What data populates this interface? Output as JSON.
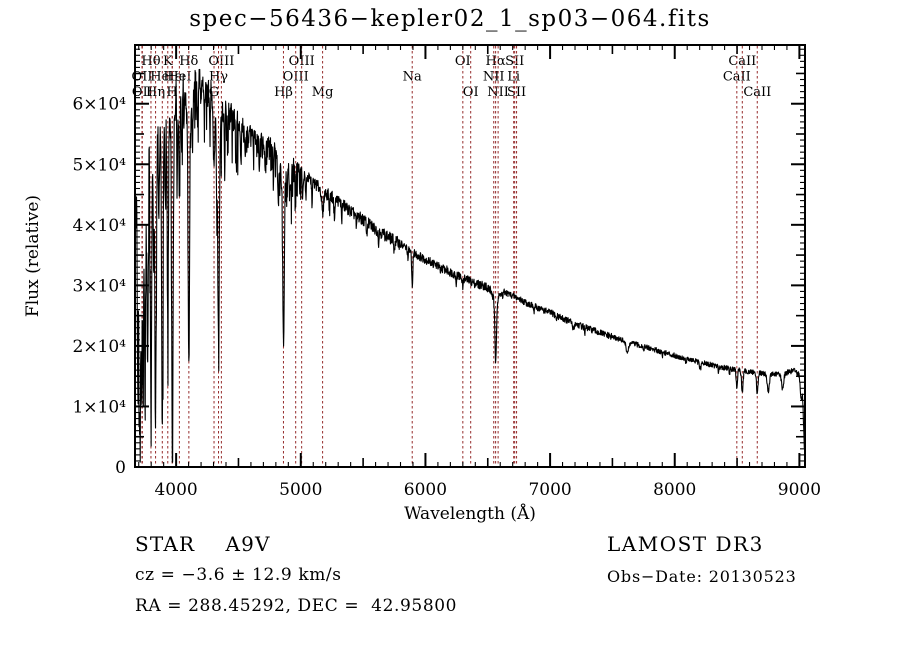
{
  "header": {
    "title": "spec−56436−kepler02_1_sp03−064.fits"
  },
  "footer": {
    "class_label": "STAR    A9V",
    "cz": "cz = −3.6 ± 12.9 km/s",
    "radec": "RA = 288.45292, DEC =  42.95800",
    "survey": "LAMOST DR3",
    "obs_date": "Obs−Date: 20130523"
  },
  "chart_data": {
    "type": "line",
    "title": "spec−56436−kepler02_1_sp03−064.fits",
    "xlabel": "Wavelength (Å)",
    "ylabel": "Flux (relative)",
    "xlim": [
      3670,
      9045
    ],
    "ylim": [
      0,
      69700
    ],
    "grid": false,
    "legend": "none",
    "axis_color": "#000000",
    "trace_color": "#000000",
    "line_marker_color": "#962c2c",
    "x_ticks": {
      "major": [
        4000,
        5000,
        6000,
        7000,
        8000,
        9000
      ],
      "labels": [
        "4000",
        "5000",
        "6000",
        "7000",
        "8000",
        "9000"
      ],
      "medium_step": 500,
      "minor_step": 100
    },
    "y_ticks": {
      "major": [
        0,
        10000,
        20000,
        30000,
        40000,
        50000,
        60000
      ],
      "labels": [
        "0",
        "1×10⁴",
        "2×10⁴",
        "3×10⁴",
        "4×10⁴",
        "5×10⁴",
        "6×10⁴"
      ],
      "medium_step": 5000,
      "minor_step": 1000
    },
    "spectral_lines": [
      {
        "label": "OII",
        "wavelength": 3726,
        "row": 2
      },
      {
        "label": "OII",
        "wavelength": 3729,
        "row": 3
      },
      {
        "label": "Hθ",
        "wavelength": 3798,
        "row": 1
      },
      {
        "label": "Hη",
        "wavelength": 3835,
        "row": 3
      },
      {
        "label": "HeI",
        "wavelength": 3889,
        "row": 2
      },
      {
        "label": "K",
        "wavelength": 3933,
        "row": 1
      },
      {
        "label": "H",
        "wavelength": 3968,
        "row": 3
      },
      {
        "label": "Hε",
        "wavelength": 3970,
        "row": 2
      },
      {
        "label": "HeI",
        "wavelength": 4026,
        "row": 2
      },
      {
        "label": "Hδ",
        "wavelength": 4102,
        "row": 1
      },
      {
        "label": "G",
        "wavelength": 4304,
        "row": 3
      },
      {
        "label": "Hγ",
        "wavelength": 4340,
        "row": 2
      },
      {
        "label": "OIII",
        "wavelength": 4363,
        "row": 1
      },
      {
        "label": "Hβ",
        "wavelength": 4861,
        "row": 3
      },
      {
        "label": "OIII",
        "wavelength": 4959,
        "row": 2
      },
      {
        "label": "OIII",
        "wavelength": 5007,
        "row": 1
      },
      {
        "label": "Mg",
        "wavelength": 5175,
        "row": 3
      },
      {
        "label": "Na",
        "wavelength": 5894,
        "row": 2
      },
      {
        "label": "OI",
        "wavelength": 6300,
        "row": 1
      },
      {
        "label": "OI",
        "wavelength": 6363,
        "row": 3
      },
      {
        "label": "NII",
        "wavelength": 6548,
        "row": 2
      },
      {
        "label": "Hα",
        "wavelength": 6563,
        "row": 1
      },
      {
        "label": "NII",
        "wavelength": 6583,
        "row": 3
      },
      {
        "label": "Li",
        "wavelength": 6708,
        "row": 2
      },
      {
        "label": "SII",
        "wavelength": 6716,
        "row": 1
      },
      {
        "label": "SII",
        "wavelength": 6731,
        "row": 3
      },
      {
        "label": "CaII",
        "wavelength": 8498,
        "row": 2
      },
      {
        "label": "CaII",
        "wavelength": 8542,
        "row": 1
      },
      {
        "label": "CaII",
        "wavelength": 8662,
        "row": 3
      }
    ],
    "spectrum": {
      "description": "LAMOST stellar spectrum of an A9V star: blue continuum peaking near 4100 Å at ~6.4×10⁴, dense deep Balmer/CaII absorption picket fence below 4000 Å, smooth decline to ~1.5×10⁴ at 9000 Å with Na, Hα and CaII-triplet absorption dips and an edge plunge at the red limit.",
      "sample_step": 2.5,
      "continuum_anchors": [
        [
          3672,
          43000
        ],
        [
          3690,
          49000
        ],
        [
          3710,
          52000
        ],
        [
          3730,
          53500
        ],
        [
          3760,
          55500
        ],
        [
          3800,
          57500
        ],
        [
          3840,
          59000
        ],
        [
          3880,
          60000
        ],
        [
          3920,
          61000
        ],
        [
          3960,
          62000
        ],
        [
          4000,
          63000
        ],
        [
          4060,
          64000
        ],
        [
          4120,
          64500
        ],
        [
          4180,
          64200
        ],
        [
          4240,
          63500
        ],
        [
          4300,
          61500
        ],
        [
          4360,
          60800
        ],
        [
          4420,
          59000
        ],
        [
          4500,
          56800
        ],
        [
          4600,
          55200
        ],
        [
          4700,
          53700
        ],
        [
          4800,
          52500
        ],
        [
          4900,
          50800
        ],
        [
          5000,
          48700
        ],
        [
          5100,
          47000
        ],
        [
          5200,
          45200
        ],
        [
          5300,
          44000
        ],
        [
          5400,
          42200
        ],
        [
          5500,
          40800
        ],
        [
          5600,
          39300
        ],
        [
          5700,
          38000
        ],
        [
          5800,
          36800
        ],
        [
          5900,
          35400
        ],
        [
          6000,
          34300
        ],
        [
          6100,
          33200
        ],
        [
          6250,
          31700
        ],
        [
          6400,
          30300
        ],
        [
          6563,
          29500
        ],
        [
          6700,
          28300
        ],
        [
          6850,
          26700
        ],
        [
          7000,
          25500
        ],
        [
          7150,
          24100
        ],
        [
          7300,
          22900
        ],
        [
          7450,
          21800
        ],
        [
          7600,
          20800
        ],
        [
          7750,
          19900
        ],
        [
          7900,
          19000
        ],
        [
          8050,
          18100
        ],
        [
          8200,
          17300
        ],
        [
          8350,
          16600
        ],
        [
          8500,
          16000
        ],
        [
          8650,
          15600
        ],
        [
          8800,
          15300
        ],
        [
          8900,
          15600
        ],
        [
          8960,
          16000
        ],
        [
          9000,
          15300
        ],
        [
          9025,
          13200
        ],
        [
          9040,
          2500
        ]
      ],
      "absorption_lines": [
        [
          3692,
          36000,
          4
        ],
        [
          3704,
          38000,
          4
        ],
        [
          3712,
          36000,
          4
        ],
        [
          3722,
          39000,
          4
        ],
        [
          3734,
          40000,
          4.5
        ],
        [
          3750,
          41000,
          5
        ],
        [
          3771,
          41500,
          5
        ],
        [
          3798,
          41000,
          5.5
        ],
        [
          3798,
          5500,
          10
        ],
        [
          3819,
          20000,
          4
        ],
        [
          3835,
          44000,
          5.5
        ],
        [
          3835,
          6000,
          11
        ],
        [
          3862,
          18000,
          4
        ],
        [
          3889,
          46000,
          5.5
        ],
        [
          3889,
          7000,
          12
        ],
        [
          3912,
          15000,
          3.5
        ],
        [
          3933,
          34000,
          4.5
        ],
        [
          3933,
          5000,
          10
        ],
        [
          3970,
          53000,
          5.5
        ],
        [
          3970,
          9000,
          14
        ],
        [
          4009,
          12000,
          3.5
        ],
        [
          4026,
          15000,
          4
        ],
        [
          4026,
          3000,
          8
        ],
        [
          4045,
          11000,
          3.5
        ],
        [
          4102,
          40000,
          5.5
        ],
        [
          4102,
          6500,
          22
        ],
        [
          4132,
          9000,
          3
        ],
        [
          4172,
          8000,
          3.5
        ],
        [
          4226,
          7000,
          3.5
        ],
        [
          4271,
          8500,
          3
        ],
        [
          4304,
          9000,
          5
        ],
        [
          4326,
          10000,
          3
        ],
        [
          4340,
          33000,
          5.5
        ],
        [
          4340,
          6000,
          22
        ],
        [
          4388,
          7000,
          3.5
        ],
        [
          4415,
          7500,
          3
        ],
        [
          4481,
          6000,
          3.5
        ],
        [
          4520,
          6500,
          3
        ],
        [
          4554,
          5500,
          3
        ],
        [
          4668,
          5500,
          3
        ],
        [
          4713,
          4500,
          3.5
        ],
        [
          4780,
          6000,
          3
        ],
        [
          4820,
          7000,
          3
        ],
        [
          4861,
          24000,
          5.5
        ],
        [
          4861,
          5000,
          25
        ],
        [
          4910,
          5000,
          3
        ],
        [
          4922,
          4500,
          3.5
        ],
        [
          4957,
          4200,
          3
        ],
        [
          5016,
          3800,
          3.5
        ],
        [
          5041,
          4200,
          3
        ],
        [
          5090,
          3500,
          3
        ],
        [
          5175,
          4000,
          7
        ],
        [
          5230,
          3000,
          3
        ],
        [
          5270,
          2800,
          5
        ],
        [
          5329,
          2600,
          3
        ],
        [
          5446,
          2400,
          3
        ],
        [
          5530,
          2200,
          3
        ],
        [
          5625,
          2000,
          3
        ],
        [
          5750,
          1900,
          3
        ],
        [
          5860,
          1800,
          3
        ],
        [
          5894,
          5200,
          5
        ],
        [
          6120,
          1500,
          3
        ],
        [
          6246,
          1300,
          3
        ],
        [
          6300,
          1400,
          4
        ],
        [
          6495,
          1100,
          3
        ],
        [
          6563,
          9800,
          6
        ],
        [
          6563,
          2200,
          25
        ],
        [
          6620,
          900,
          3
        ],
        [
          6870,
          1100,
          3
        ],
        [
          7050,
          900,
          3
        ],
        [
          7186,
          1000,
          7
        ],
        [
          7280,
          900,
          3
        ],
        [
          7620,
          1700,
          11
        ],
        [
          7750,
          700,
          3
        ],
        [
          7900,
          700,
          3
        ],
        [
          8090,
          800,
          3
        ],
        [
          8205,
          1100,
          7
        ],
        [
          8350,
          900,
          3
        ],
        [
          8440,
          900,
          3
        ],
        [
          8498,
          2900,
          5
        ],
        [
          8542,
          3500,
          6
        ],
        [
          8662,
          3400,
          6
        ],
        [
          8750,
          2800,
          9
        ],
        [
          8865,
          2500,
          9
        ],
        [
          9015,
          2800,
          8
        ]
      ],
      "noise_regions": [
        [
          3670,
          4000,
          3000
        ],
        [
          4000,
          4500,
          1900
        ],
        [
          4500,
          5000,
          1400
        ],
        [
          5000,
          5800,
          1000
        ],
        [
          5800,
          6600,
          750
        ],
        [
          6600,
          7500,
          550
        ],
        [
          7500,
          9045,
          420
        ]
      ]
    }
  }
}
